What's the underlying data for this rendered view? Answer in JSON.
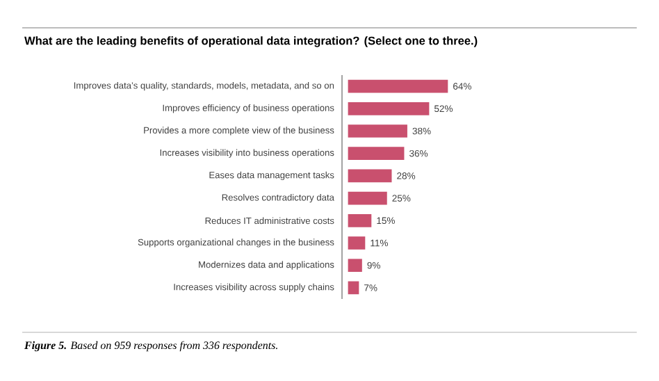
{
  "chart_data": {
    "type": "bar",
    "orientation": "horizontal",
    "title": "What are the leading benefits of operational data integration? (Select one to three.)",
    "categories": [
      "Improves data’s quality, standards, models, metadata, and so on",
      "Improves efficiency of business operations",
      "Provides a more complete view of the business",
      "Increases visibility into business operations",
      "Eases data management tasks",
      "Resolves contradictory data",
      "Reduces IT administrative costs",
      "Supports organizational changes in the business",
      "Modernizes data and applications",
      "Increases visibility across supply chains"
    ],
    "values": [
      64,
      52,
      38,
      36,
      28,
      25,
      15,
      11,
      9,
      7
    ],
    "value_labels": [
      "64%",
      "52%",
      "38%",
      "36%",
      "28%",
      "25%",
      "15%",
      "11%",
      "9%",
      "7%"
    ],
    "color": "#c9506e",
    "annotations": [
      "**Figure 5.** Based on 959 responses from 336 respondents."
    ]
  }
}
